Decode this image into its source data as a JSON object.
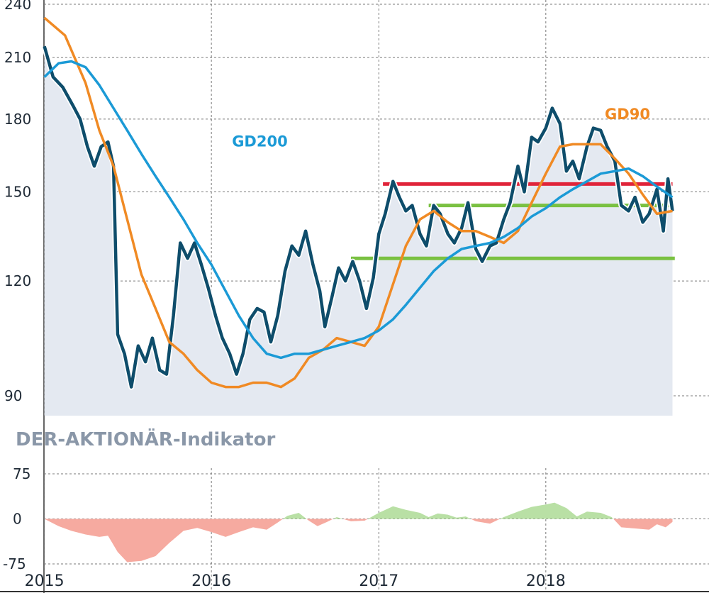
{
  "chart_data": [
    {
      "type": "line",
      "xlabel": "",
      "ylabel": "",
      "ylim": [
        88,
        240
      ],
      "y_scale": "log",
      "y_ticks": [
        240,
        210,
        180,
        150,
        120,
        90
      ],
      "x_range": [
        "2014-12-31",
        "2018-10-15"
      ],
      "x_ticks": [
        {
          "date": "2015-01-01",
          "label": "2015"
        },
        {
          "date": "2016-01-01",
          "label": "2016"
        },
        {
          "date": "2017-01-01",
          "label": "2017"
        },
        {
          "date": "2018-01-01",
          "label": "2018"
        }
      ],
      "grid": true,
      "series": [
        {
          "role": "price",
          "color": "#0e4d6b",
          "area_fill": "#e4e9f1",
          "points": [
            [
              "2015-01-01",
              216
            ],
            [
              "2015-01-20",
              200
            ],
            [
              "2015-02-10",
              195
            ],
            [
              "2015-03-05",
              186
            ],
            [
              "2015-03-20",
              180
            ],
            [
              "2015-04-05",
              168
            ],
            [
              "2015-04-20",
              160
            ],
            [
              "2015-05-05",
              168
            ],
            [
              "2015-05-20",
              170
            ],
            [
              "2015-06-01",
              160
            ],
            [
              "2015-06-10",
              105
            ],
            [
              "2015-06-25",
              100
            ],
            [
              "2015-07-10",
              92
            ],
            [
              "2015-07-25",
              102
            ],
            [
              "2015-08-10",
              98
            ],
            [
              "2015-08-25",
              104
            ],
            [
              "2015-09-10",
              96
            ],
            [
              "2015-09-25",
              95
            ],
            [
              "2015-10-10",
              110
            ],
            [
              "2015-10-25",
              132
            ],
            [
              "2015-11-10",
              127
            ],
            [
              "2015-11-25",
              132
            ],
            [
              "2015-12-10",
              125
            ],
            [
              "2015-12-25",
              118
            ],
            [
              "2016-01-10",
              110
            ],
            [
              "2016-01-25",
              104
            ],
            [
              "2016-02-10",
              100
            ],
            [
              "2016-02-25",
              95
            ],
            [
              "2016-03-10",
              100
            ],
            [
              "2016-03-25",
              109
            ],
            [
              "2016-04-10",
              112
            ],
            [
              "2016-04-25",
              111
            ],
            [
              "2016-05-10",
              103
            ],
            [
              "2016-05-25",
              110
            ],
            [
              "2016-06-10",
              123
            ],
            [
              "2016-06-25",
              131
            ],
            [
              "2016-07-10",
              128
            ],
            [
              "2016-07-25",
              136
            ],
            [
              "2016-08-10",
              125
            ],
            [
              "2016-08-25",
              117
            ],
            [
              "2016-09-05",
              107
            ],
            [
              "2016-09-20",
              115
            ],
            [
              "2016-10-05",
              124
            ],
            [
              "2016-10-20",
              120
            ],
            [
              "2016-11-05",
              126
            ],
            [
              "2016-11-20",
              120
            ],
            [
              "2016-12-05",
              112
            ],
            [
              "2016-12-20",
              121
            ],
            [
              "2017-01-01",
              135
            ],
            [
              "2017-01-15",
              142
            ],
            [
              "2017-02-01",
              154
            ],
            [
              "2017-02-15",
              148
            ],
            [
              "2017-03-01",
              143
            ],
            [
              "2017-03-15",
              145
            ],
            [
              "2017-04-01",
              135
            ],
            [
              "2017-04-15",
              131
            ],
            [
              "2017-05-01",
              145
            ],
            [
              "2017-05-15",
              142
            ],
            [
              "2017-06-01",
              135
            ],
            [
              "2017-06-15",
              132
            ],
            [
              "2017-07-01",
              137
            ],
            [
              "2017-07-15",
              146
            ],
            [
              "2017-08-01",
              130
            ],
            [
              "2017-08-15",
              126
            ],
            [
              "2017-09-01",
              131
            ],
            [
              "2017-09-15",
              132
            ],
            [
              "2017-10-01",
              140
            ],
            [
              "2017-10-15",
              146
            ],
            [
              "2017-11-01",
              160
            ],
            [
              "2017-11-15",
              150
            ],
            [
              "2017-12-01",
              172
            ],
            [
              "2017-12-15",
              170
            ],
            [
              "2018-01-01",
              176
            ],
            [
              "2018-01-15",
              185
            ],
            [
              "2018-02-01",
              178
            ],
            [
              "2018-02-15",
              158
            ],
            [
              "2018-03-01",
              162
            ],
            [
              "2018-03-15",
              155
            ],
            [
              "2018-04-01",
              168
            ],
            [
              "2018-04-15",
              176
            ],
            [
              "2018-05-01",
              175
            ],
            [
              "2018-05-15",
              168
            ],
            [
              "2018-06-01",
              162
            ],
            [
              "2018-06-15",
              145
            ],
            [
              "2018-07-01",
              143
            ],
            [
              "2018-07-15",
              148
            ],
            [
              "2018-08-01",
              139
            ],
            [
              "2018-08-15",
              142
            ],
            [
              "2018-09-01",
              151
            ],
            [
              "2018-09-15",
              136
            ],
            [
              "2018-09-25",
              155
            ],
            [
              "2018-10-05",
              143
            ]
          ]
        },
        {
          "name": "GD90",
          "color": "#f08a24",
          "points": [
            [
              "2015-01-01",
              232
            ],
            [
              "2015-02-15",
              222
            ],
            [
              "2015-04-01",
              197
            ],
            [
              "2015-05-01",
              175
            ],
            [
              "2015-06-01",
              160
            ],
            [
              "2015-07-01",
              140
            ],
            [
              "2015-08-01",
              122
            ],
            [
              "2015-09-01",
              112
            ],
            [
              "2015-10-01",
              103
            ],
            [
              "2015-11-01",
              100
            ],
            [
              "2015-12-01",
              96
            ],
            [
              "2016-01-01",
              93
            ],
            [
              "2016-02-01",
              92
            ],
            [
              "2016-03-01",
              92
            ],
            [
              "2016-04-01",
              93
            ],
            [
              "2016-05-01",
              93
            ],
            [
              "2016-06-01",
              92
            ],
            [
              "2016-07-01",
              94
            ],
            [
              "2016-08-01",
              99
            ],
            [
              "2016-09-01",
              101
            ],
            [
              "2016-10-01",
              104
            ],
            [
              "2016-11-01",
              103
            ],
            [
              "2016-12-01",
              102
            ],
            [
              "2017-01-01",
              107
            ],
            [
              "2017-02-01",
              119
            ],
            [
              "2017-03-01",
              131
            ],
            [
              "2017-04-01",
              140
            ],
            [
              "2017-05-01",
              143
            ],
            [
              "2017-06-01",
              139
            ],
            [
              "2017-07-01",
              136
            ],
            [
              "2017-08-01",
              136
            ],
            [
              "2017-09-01",
              134
            ],
            [
              "2017-10-01",
              132
            ],
            [
              "2017-11-01",
              136
            ],
            [
              "2017-12-01",
              146
            ],
            [
              "2018-01-01",
              157
            ],
            [
              "2018-02-01",
              168
            ],
            [
              "2018-03-01",
              169
            ],
            [
              "2018-04-01",
              169
            ],
            [
              "2018-05-01",
              169
            ],
            [
              "2018-06-01",
              163
            ],
            [
              "2018-07-01",
              157
            ],
            [
              "2018-08-01",
              149
            ],
            [
              "2018-09-01",
              142
            ],
            [
              "2018-10-05",
              143
            ]
          ]
        },
        {
          "name": "GD200",
          "color": "#1b9ad6",
          "points": [
            [
              "2015-01-01",
              200
            ],
            [
              "2015-02-01",
              207
            ],
            [
              "2015-03-01",
              208
            ],
            [
              "2015-04-01",
              205
            ],
            [
              "2015-05-01",
              196
            ],
            [
              "2015-06-01",
              185
            ],
            [
              "2015-07-01",
              175
            ],
            [
              "2015-08-01",
              165
            ],
            [
              "2015-09-01",
              156
            ],
            [
              "2015-10-01",
              148
            ],
            [
              "2015-11-01",
              140
            ],
            [
              "2015-12-01",
              132
            ],
            [
              "2016-01-01",
              125
            ],
            [
              "2016-02-01",
              117
            ],
            [
              "2016-03-01",
              110
            ],
            [
              "2016-04-01",
              104
            ],
            [
              "2016-05-01",
              100
            ],
            [
              "2016-06-01",
              99
            ],
            [
              "2016-07-01",
              100
            ],
            [
              "2016-08-01",
              100
            ],
            [
              "2016-09-01",
              101
            ],
            [
              "2016-10-01",
              102
            ],
            [
              "2016-11-01",
              103
            ],
            [
              "2016-12-01",
              104
            ],
            [
              "2017-01-01",
              106
            ],
            [
              "2017-02-01",
              109
            ],
            [
              "2017-03-01",
              113
            ],
            [
              "2017-04-01",
              118
            ],
            [
              "2017-05-01",
              123
            ],
            [
              "2017-06-01",
              127
            ],
            [
              "2017-07-01",
              130
            ],
            [
              "2017-08-01",
              131
            ],
            [
              "2017-09-01",
              132
            ],
            [
              "2017-10-01",
              134
            ],
            [
              "2017-11-01",
              137
            ],
            [
              "2017-12-01",
              141
            ],
            [
              "2018-01-01",
              144
            ],
            [
              "2018-02-01",
              148
            ],
            [
              "2018-03-01",
              151
            ],
            [
              "2018-04-01",
              154
            ],
            [
              "2018-05-01",
              157
            ],
            [
              "2018-06-01",
              158
            ],
            [
              "2018-07-01",
              159
            ],
            [
              "2018-08-01",
              156
            ],
            [
              "2018-09-01",
              152
            ],
            [
              "2018-10-05",
              148
            ]
          ]
        }
      ],
      "horizontal_levels": [
        {
          "value": 153,
          "x_from": "2017-01-10",
          "x_to": "2018-10-05",
          "color": "#e0243a"
        },
        {
          "value": 145,
          "x_from": "2017-04-20",
          "x_to": "2018-10-05",
          "color": "#7ac142"
        },
        {
          "value": 127,
          "x_from": "2016-11-01",
          "x_to": "2018-10-10",
          "color": "#7ac142"
        }
      ],
      "annotations": [
        {
          "text": "GD200",
          "color": "#1b9ad6",
          "anchor": [
            "2016-02-15",
            168
          ]
        },
        {
          "text": "GD90",
          "color": "#f08a24",
          "anchor": [
            "2018-05-10",
            180
          ]
        }
      ]
    },
    {
      "type": "area",
      "title": "DER-AKTIONÄR-Indikator",
      "ylim": [
        -75,
        75
      ],
      "y_ticks": [
        75,
        0,
        -75
      ],
      "positive_color": "#b9e0a5",
      "negative_color": "#f6aaa0",
      "points": [
        [
          "2015-01-01",
          0
        ],
        [
          "2015-02-01",
          -12
        ],
        [
          "2015-03-01",
          -20
        ],
        [
          "2015-04-01",
          -26
        ],
        [
          "2015-05-01",
          -30
        ],
        [
          "2015-05-20",
          -28
        ],
        [
          "2015-06-10",
          -55
        ],
        [
          "2015-07-01",
          -72
        ],
        [
          "2015-08-01",
          -70
        ],
        [
          "2015-09-01",
          -62
        ],
        [
          "2015-10-01",
          -40
        ],
        [
          "2015-11-01",
          -20
        ],
        [
          "2015-12-01",
          -15
        ],
        [
          "2016-01-01",
          -22
        ],
        [
          "2016-02-01",
          -30
        ],
        [
          "2016-03-01",
          -22
        ],
        [
          "2016-04-01",
          -14
        ],
        [
          "2016-05-01",
          -18
        ],
        [
          "2016-05-25",
          -6
        ],
        [
          "2016-06-15",
          5
        ],
        [
          "2016-07-10",
          10
        ],
        [
          "2016-08-01",
          -3
        ],
        [
          "2016-08-20",
          -12
        ],
        [
          "2016-09-10",
          -5
        ],
        [
          "2016-10-01",
          3
        ],
        [
          "2016-11-01",
          -4
        ],
        [
          "2016-12-01",
          -3
        ],
        [
          "2017-01-01",
          10
        ],
        [
          "2017-02-01",
          21
        ],
        [
          "2017-03-01",
          15
        ],
        [
          "2017-04-01",
          10
        ],
        [
          "2017-04-20",
          3
        ],
        [
          "2017-05-10",
          9
        ],
        [
          "2017-06-01",
          7
        ],
        [
          "2017-06-20",
          2
        ],
        [
          "2017-07-10",
          4
        ],
        [
          "2017-08-01",
          -4
        ],
        [
          "2017-09-01",
          -8
        ],
        [
          "2017-10-01",
          3
        ],
        [
          "2017-11-01",
          12
        ],
        [
          "2017-12-01",
          20
        ],
        [
          "2018-01-01",
          24
        ],
        [
          "2018-01-20",
          27
        ],
        [
          "2018-02-15",
          18
        ],
        [
          "2018-03-10",
          4
        ],
        [
          "2018-04-01",
          12
        ],
        [
          "2018-05-01",
          10
        ],
        [
          "2018-05-25",
          3
        ],
        [
          "2018-06-15",
          -14
        ],
        [
          "2018-07-15",
          -16
        ],
        [
          "2018-08-15",
          -18
        ],
        [
          "2018-09-01",
          -9
        ],
        [
          "2018-09-20",
          -14
        ],
        [
          "2018-10-05",
          -5
        ]
      ]
    }
  ]
}
